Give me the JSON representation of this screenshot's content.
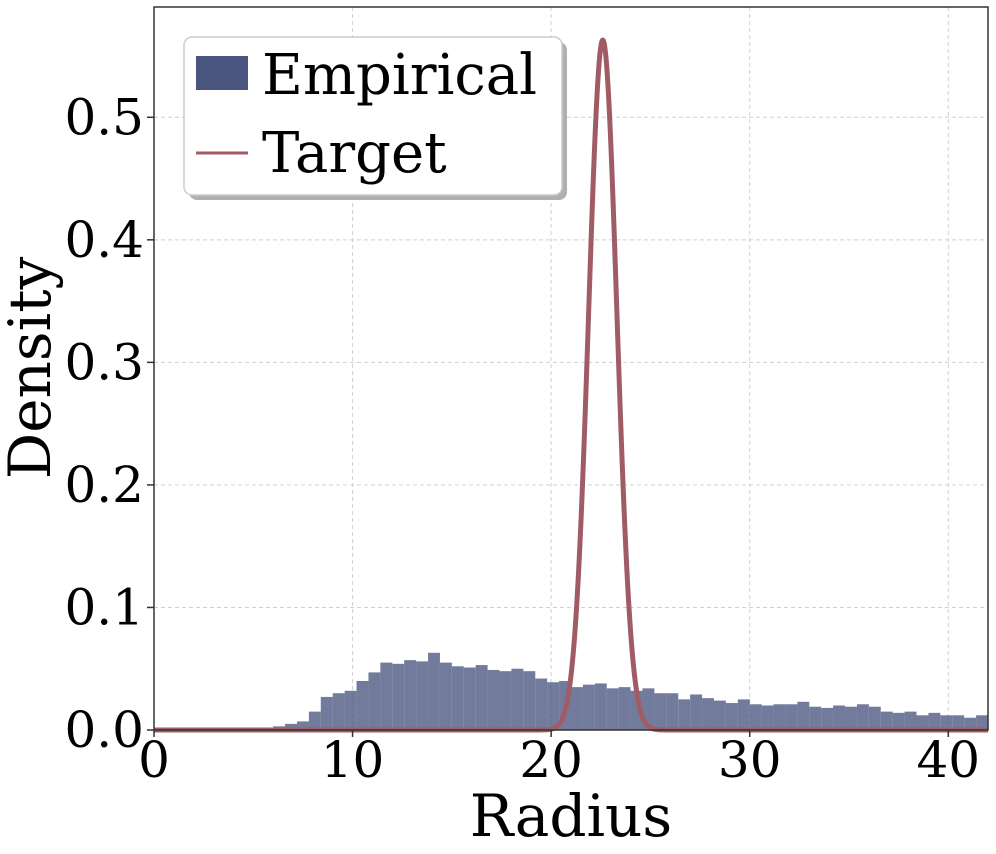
{
  "chart_data": {
    "type": "bar",
    "title": "",
    "xlabel": "Radius",
    "ylabel": "Density",
    "xlim": [
      0,
      42
    ],
    "ylim": [
      0,
      0.59
    ],
    "xticks": [
      "0",
      "10",
      "20",
      "30",
      "40"
    ],
    "yticks": [
      "0.0",
      "0.1",
      "0.2",
      "0.3",
      "0.4",
      "0.5"
    ],
    "grid": true,
    "legend_position": "top-left",
    "histogram": {
      "name": "Empirical",
      "color": "#4b5680",
      "bin_start": 0,
      "bin_width": 0.6,
      "values": [
        0,
        0,
        0,
        0,
        0,
        0,
        0,
        0,
        0,
        0,
        0.003,
        0.005,
        0.007,
        0.015,
        0.027,
        0.03,
        0.032,
        0.04,
        0.047,
        0.055,
        0.054,
        0.057,
        0.056,
        0.063,
        0.055,
        0.052,
        0.051,
        0.053,
        0.049,
        0.048,
        0.05,
        0.048,
        0.042,
        0.039,
        0.04,
        0.035,
        0.037,
        0.038,
        0.034,
        0.035,
        0.032,
        0.034,
        0.03,
        0.03,
        0.025,
        0.029,
        0.026,
        0.024,
        0.022,
        0.025,
        0.021,
        0.02,
        0.021,
        0.021,
        0.023,
        0.019,
        0.018,
        0.02,
        0.019,
        0.021,
        0.019,
        0.015,
        0.014,
        0.015,
        0.012,
        0.014,
        0.012,
        0.012,
        0.01,
        0.012,
        0.01,
        0.009,
        0.009,
        0.008,
        0.008,
        0.007,
        0.006,
        0.007,
        0.006,
        0.006
      ]
    },
    "series": [
      {
        "name": "Target",
        "type": "line",
        "color": "#a05c64",
        "distribution": "gaussian",
        "mean": 22.6,
        "peak": 0.563,
        "std": 0.71
      }
    ]
  }
}
